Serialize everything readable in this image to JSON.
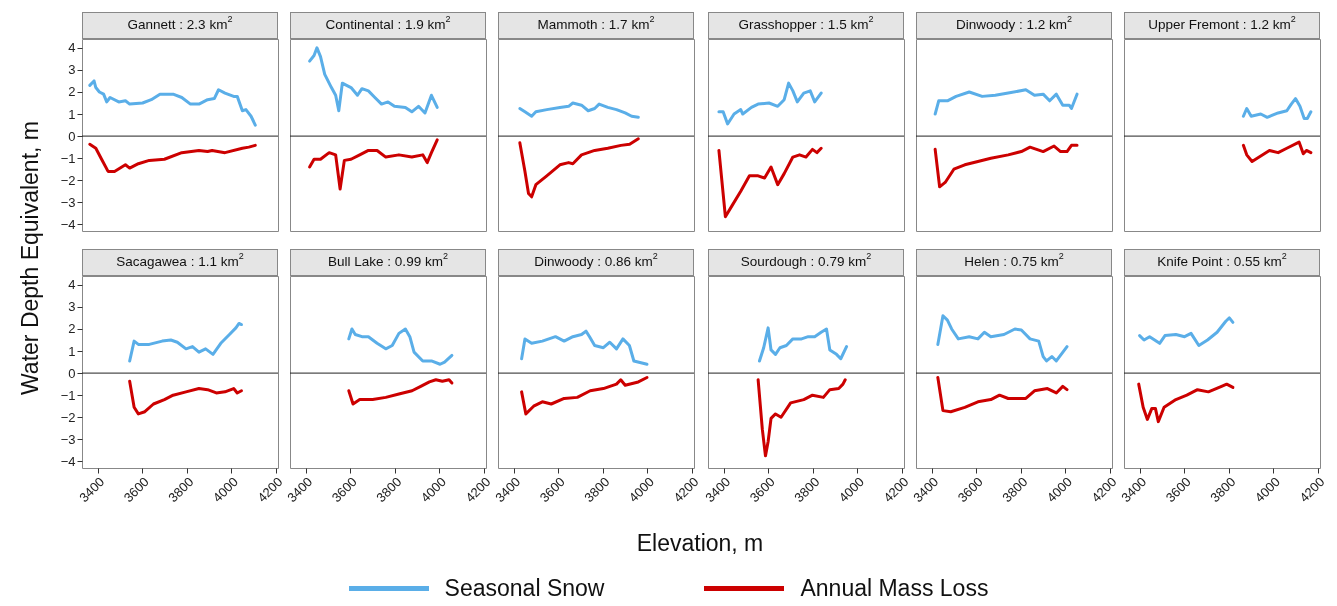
{
  "chart_data": [
    {
      "type": "line",
      "title": "Gannett : 2.3 km$^{2}$",
      "ylabel": "Water Depth Equivalent, m",
      "legend": "bottom",
      "tick_labels": "y",
      "xlim": [
        3330,
        4210
      ],
      "xticks": [
        3400,
        3600,
        3800,
        4000,
        4200
      ],
      "ylim": [
        -4.3,
        4.4
      ],
      "yticks": [
        -4,
        -3,
        -2,
        -1,
        0,
        1,
        2,
        3,
        4
      ],
      "ref_lines": [
        {
          "axis": "y",
          "value": 0
        }
      ],
      "series": [
        {
          "name": "Seasonal Snow",
          "color": "#5aaee8",
          "x": [
            3365,
            3384,
            3392,
            3408,
            3427,
            3441,
            3456,
            3495,
            3525,
            3544,
            3602,
            3641,
            3680,
            3739,
            3778,
            3817,
            3855,
            3894,
            3924,
            3943,
            3972,
            4011,
            4027,
            4050,
            4066,
            4089,
            4108
          ],
          "values": [
            2.3,
            2.5,
            2.2,
            2.0,
            1.9,
            1.55,
            1.75,
            1.55,
            1.6,
            1.45,
            1.5,
            1.65,
            1.9,
            1.9,
            1.75,
            1.45,
            1.45,
            1.65,
            1.7,
            2.1,
            1.95,
            1.8,
            1.8,
            1.15,
            1.2,
            0.9,
            0.5
          ]
        },
        {
          "name": "Annual Mass Loss",
          "color": "#cc0000",
          "x": [
            3365,
            3392,
            3418,
            3447,
            3476,
            3525,
            3544,
            3583,
            3632,
            3700,
            3778,
            3855,
            3894,
            3914,
            3972,
            4050,
            4079,
            4108
          ],
          "values": [
            -0.37,
            -0.55,
            -1.05,
            -1.6,
            -1.6,
            -1.3,
            -1.45,
            -1.25,
            -1.1,
            -1.05,
            -0.75,
            -0.65,
            -0.7,
            -0.65,
            -0.75,
            -0.55,
            -0.5,
            -0.42
          ]
        }
      ]
    },
    {
      "type": "line",
      "title": "Continental : 1.9 km$^{2}$",
      "tick_labels": false,
      "xlim": [
        3330,
        4210
      ],
      "xticks": [
        3400,
        3600,
        3800,
        4000,
        4200
      ],
      "ylim": [
        -4.3,
        4.4
      ],
      "yticks": [
        -4,
        -3,
        -2,
        -1,
        0,
        1,
        2,
        3,
        4
      ],
      "ref_lines": [
        {
          "axis": "y",
          "value": 0
        }
      ],
      "series": [
        {
          "color": "#5aaee8",
          "x": [
            3418,
            3438,
            3451,
            3467,
            3486,
            3516,
            3535,
            3549,
            3565,
            3584,
            3604,
            3633,
            3653,
            3682,
            3711,
            3741,
            3770,
            3799,
            3848,
            3877,
            3907,
            3936,
            3965,
            3991
          ],
          "values": [
            3.4,
            3.65,
            4.0,
            3.6,
            2.8,
            2.2,
            1.85,
            1.15,
            2.4,
            2.3,
            2.2,
            1.85,
            2.15,
            2.05,
            1.75,
            1.45,
            1.55,
            1.35,
            1.3,
            1.1,
            1.35,
            1.05,
            1.85,
            1.3
          ]
        },
        {
          "color": "#cc0000",
          "x": [
            3418,
            3438,
            3467,
            3506,
            3535,
            3555,
            3574,
            3604,
            3643,
            3682,
            3721,
            3760,
            3819,
            3877,
            3926,
            3946,
            3965,
            3991
          ],
          "values": [
            -1.4,
            -1.05,
            -1.05,
            -0.75,
            -0.85,
            -2.4,
            -1.1,
            -1.05,
            -0.85,
            -0.65,
            -0.65,
            -0.95,
            -0.85,
            -0.95,
            -0.85,
            -1.2,
            -0.75,
            -0.17
          ]
        }
      ]
    },
    {
      "type": "line",
      "title": "Mammoth : 1.7 km$^{2}$",
      "tick_labels": false,
      "xlim": [
        3330,
        4210
      ],
      "xticks": [
        3400,
        3600,
        3800,
        4000,
        4200
      ],
      "ylim": [
        -4.3,
        4.4
      ],
      "yticks": [
        -4,
        -3,
        -2,
        -1,
        0,
        1,
        2,
        3,
        4
      ],
      "ref_lines": [
        {
          "axis": "y",
          "value": 0
        }
      ],
      "series": [
        {
          "color": "#5aaee8",
          "x": [
            3428,
            3451,
            3481,
            3500,
            3549,
            3608,
            3647,
            3666,
            3705,
            3735,
            3764,
            3784,
            3823,
            3862,
            3901,
            3930,
            3960
          ],
          "values": [
            1.25,
            1.1,
            0.9,
            1.1,
            1.2,
            1.3,
            1.35,
            1.5,
            1.4,
            1.15,
            1.25,
            1.45,
            1.3,
            1.2,
            1.05,
            0.9,
            0.85
          ]
        },
        {
          "color": "#cc0000",
          "x": [
            3428,
            3451,
            3467,
            3481,
            3500,
            3549,
            3608,
            3647,
            3666,
            3705,
            3764,
            3823,
            3882,
            3921,
            3960
          ],
          "values": [
            -0.3,
            -1.6,
            -2.6,
            -2.75,
            -2.2,
            -1.8,
            -1.3,
            -1.2,
            -1.25,
            -0.85,
            -0.65,
            -0.55,
            -0.42,
            -0.37,
            -0.12
          ]
        }
      ]
    },
    {
      "type": "line",
      "title": "Grasshopper : 1.5 km$^{2}$",
      "tick_labels": false,
      "xlim": [
        3330,
        4210
      ],
      "xticks": [
        3400,
        3600,
        3800,
        4000,
        4200
      ],
      "ylim": [
        -4.3,
        4.4
      ],
      "yticks": [
        -4,
        -3,
        -2,
        -1,
        0,
        1,
        2,
        3,
        4
      ],
      "ref_lines": [
        {
          "axis": "y",
          "value": 0
        }
      ],
      "series": [
        {
          "color": "#5aaee8",
          "x": [
            3379,
            3398,
            3418,
            3447,
            3477,
            3486,
            3525,
            3555,
            3604,
            3643,
            3672,
            3692,
            3711,
            3731,
            3760,
            3789,
            3809,
            3838
          ],
          "values": [
            1.1,
            1.1,
            0.55,
            1.0,
            1.2,
            1.0,
            1.3,
            1.45,
            1.5,
            1.35,
            1.65,
            2.4,
            2.05,
            1.55,
            1.95,
            2.05,
            1.55,
            1.95
          ]
        },
        {
          "color": "#cc0000",
          "x": [
            3379,
            3408,
            3438,
            3477,
            3516,
            3555,
            3584,
            3613,
            3643,
            3672,
            3711,
            3741,
            3770,
            3799,
            3819,
            3838
          ],
          "values": [
            -0.65,
            -3.65,
            -3.15,
            -2.5,
            -1.8,
            -1.8,
            -1.9,
            -1.4,
            -2.2,
            -1.7,
            -0.95,
            -0.85,
            -0.95,
            -0.6,
            -0.75,
            -0.55
          ]
        }
      ]
    },
    {
      "type": "line",
      "title": "Dinwoody : 1.2 km$^{2}$",
      "tick_labels": false,
      "xlim": [
        3330,
        4210
      ],
      "xticks": [
        3400,
        3600,
        3800,
        4000,
        4200
      ],
      "ylim": [
        -4.3,
        4.4
      ],
      "yticks": [
        -4,
        -3,
        -2,
        -1,
        0,
        1,
        2,
        3,
        4
      ],
      "ref_lines": [
        {
          "axis": "y",
          "value": 0
        }
      ],
      "series": [
        {
          "color": "#5aaee8",
          "x": [
            3416,
            3432,
            3471,
            3510,
            3569,
            3627,
            3686,
            3744,
            3823,
            3862,
            3901,
            3930,
            3960,
            3989,
            4018,
            4028,
            4053
          ],
          "values": [
            1.0,
            1.6,
            1.6,
            1.8,
            2.0,
            1.8,
            1.85,
            1.95,
            2.1,
            1.85,
            1.9,
            1.6,
            1.9,
            1.4,
            1.4,
            1.25,
            1.9
          ]
        },
        {
          "color": "#cc0000",
          "x": [
            3416,
            3436,
            3461,
            3500,
            3549,
            3608,
            3666,
            3744,
            3803,
            3842,
            3901,
            3950,
            3979,
            4008,
            4028,
            4053
          ],
          "values": [
            -0.6,
            -2.3,
            -2.1,
            -1.5,
            -1.3,
            -1.15,
            -1.0,
            -0.85,
            -0.7,
            -0.5,
            -0.7,
            -0.45,
            -0.7,
            -0.7,
            -0.42,
            -0.42
          ]
        }
      ]
    },
    {
      "type": "line",
      "title": "Upper Fremont : 1.2 km$^{2}$",
      "tick_labels": false,
      "xlim": [
        3330,
        4210
      ],
      "xticks": [
        3400,
        3600,
        3800,
        4000,
        4200
      ],
      "ylim": [
        -4.3,
        4.4
      ],
      "yticks": [
        -4,
        -3,
        -2,
        -1,
        0,
        1,
        2,
        3,
        4
      ],
      "ref_lines": [
        {
          "axis": "y",
          "value": 0
        }
      ],
      "series": [
        {
          "color": "#5aaee8",
          "x": [
            3866,
            3881,
            3901,
            3944,
            3973,
            4022,
            4061,
            4081,
            4100,
            4120,
            4139,
            4153,
            4169
          ],
          "values": [
            0.9,
            1.25,
            0.9,
            1.0,
            0.85,
            1.05,
            1.15,
            1.45,
            1.7,
            1.35,
            0.8,
            0.8,
            1.1
          ]
        },
        {
          "color": "#cc0000",
          "x": [
            3866,
            3881,
            3905,
            3944,
            3983,
            4022,
            4061,
            4116,
            4135,
            4149,
            4169
          ],
          "values": [
            -0.42,
            -0.85,
            -1.15,
            -0.9,
            -0.65,
            -0.75,
            -0.55,
            -0.27,
            -0.8,
            -0.65,
            -0.75
          ]
        }
      ]
    },
    {
      "type": "line",
      "title": "Sacagawea : 1.1 km$^{2}$",
      "xlim": [
        3330,
        4210
      ],
      "xticks": [
        3400,
        3600,
        3800,
        4000,
        4200
      ],
      "ylim": [
        -4.3,
        4.4
      ],
      "yticks": [
        -4,
        -3,
        -2,
        -1,
        0,
        1,
        2,
        3,
        4
      ],
      "ref_lines": [
        {
          "axis": "y",
          "value": 0
        }
      ],
      "series": [
        {
          "color": "#5aaee8",
          "x": [
            3544,
            3564,
            3583,
            3632,
            3690,
            3729,
            3758,
            3797,
            3826,
            3855,
            3885,
            3918,
            3953,
            3992,
            4021,
            4035,
            4046
          ],
          "values": [
            0.55,
            1.45,
            1.3,
            1.3,
            1.45,
            1.5,
            1.4,
            1.1,
            1.2,
            0.95,
            1.1,
            0.85,
            1.35,
            1.75,
            2.05,
            2.25,
            2.2
          ]
        },
        {
          "color": "#cc0000",
          "x": [
            3544,
            3564,
            3583,
            3612,
            3651,
            3700,
            3739,
            3797,
            3855,
            3894,
            3933,
            3972,
            4011,
            4027,
            4046
          ],
          "values": [
            -0.37,
            -1.55,
            -1.85,
            -1.75,
            -1.4,
            -1.2,
            -1.0,
            -0.85,
            -0.7,
            -0.75,
            -0.9,
            -0.85,
            -0.7,
            -0.9,
            -0.8
          ]
        }
      ]
    },
    {
      "type": "line",
      "title": "Bull Lake : 0.99 km$^{2}$",
      "tick_labels": "x",
      "xlim": [
        3330,
        4210
      ],
      "xticks": [
        3400,
        3600,
        3800,
        4000,
        4200
      ],
      "ylim": [
        -4.3,
        4.4
      ],
      "yticks": [
        -4,
        -3,
        -2,
        -1,
        0,
        1,
        2,
        3,
        4
      ],
      "ref_lines": [
        {
          "axis": "y",
          "value": 0
        }
      ],
      "series": [
        {
          "color": "#5aaee8",
          "x": [
            3594,
            3608,
            3623,
            3653,
            3682,
            3721,
            3760,
            3789,
            3819,
            3848,
            3868,
            3887,
            3926,
            3965,
            4004,
            4024,
            4057
          ],
          "values": [
            1.55,
            2.0,
            1.75,
            1.65,
            1.65,
            1.35,
            1.1,
            1.25,
            1.8,
            2.0,
            1.65,
            0.95,
            0.55,
            0.55,
            0.4,
            0.5,
            0.8
          ]
        },
        {
          "color": "#cc0000",
          "x": [
            3594,
            3613,
            3643,
            3701,
            3760,
            3819,
            3878,
            3917,
            3956,
            3985,
            4014,
            4044,
            4057
          ],
          "values": [
            -0.8,
            -1.4,
            -1.2,
            -1.2,
            -1.1,
            -0.95,
            -0.8,
            -0.6,
            -0.4,
            -0.3,
            -0.37,
            -0.3,
            -0.45
          ]
        }
      ]
    },
    {
      "type": "line",
      "title": "Dinwoody : 0.86 km$^{2}$",
      "xlabel": "Elevation, m",
      "tick_labels": "x",
      "xlim": [
        3330,
        4210
      ],
      "xticks": [
        3400,
        3600,
        3800,
        4000,
        4200
      ],
      "ylim": [
        -4.3,
        4.4
      ],
      "yticks": [
        -4,
        -3,
        -2,
        -1,
        0,
        1,
        2,
        3,
        4
      ],
      "ref_lines": [
        {
          "axis": "y",
          "value": 0
        }
      ],
      "series": [
        {
          "color": "#5aaee8",
          "x": [
            3436,
            3451,
            3481,
            3529,
            3588,
            3627,
            3666,
            3705,
            3725,
            3741,
            3764,
            3803,
            3832,
            3862,
            3891,
            3920,
            3940,
            3999
          ],
          "values": [
            0.65,
            1.55,
            1.35,
            1.45,
            1.65,
            1.45,
            1.65,
            1.75,
            1.9,
            1.65,
            1.25,
            1.15,
            1.4,
            1.1,
            1.55,
            1.25,
            0.55,
            0.4
          ]
        },
        {
          "color": "#cc0000",
          "x": [
            3436,
            3455,
            3490,
            3529,
            3569,
            3627,
            3686,
            3744,
            3803,
            3862,
            3881,
            3901,
            3960,
            3999
          ],
          "values": [
            -0.85,
            -1.85,
            -1.5,
            -1.3,
            -1.4,
            -1.15,
            -1.1,
            -0.8,
            -0.7,
            -0.5,
            -0.3,
            -0.55,
            -0.4,
            -0.2
          ]
        }
      ]
    },
    {
      "type": "line",
      "title": "Sourdough : 0.79 km$^{2}$",
      "tick_labels": "x",
      "xlim": [
        3330,
        4210
      ],
      "xticks": [
        3400,
        3600,
        3800,
        4000,
        4200
      ],
      "ylim": [
        -4.3,
        4.4
      ],
      "yticks": [
        -4,
        -3,
        -2,
        -1,
        0,
        1,
        2,
        3,
        4
      ],
      "ref_lines": [
        {
          "axis": "y",
          "value": 0
        }
      ],
      "series": [
        {
          "color": "#5aaee8",
          "x": [
            3561,
            3580,
            3600,
            3613,
            3633,
            3653,
            3682,
            3711,
            3750,
            3780,
            3809,
            3838,
            3862,
            3877,
            3907,
            3926,
            3952
          ],
          "values": [
            0.55,
            1.15,
            2.05,
            1.05,
            0.85,
            1.15,
            1.25,
            1.55,
            1.55,
            1.65,
            1.65,
            1.85,
            2.0,
            1.05,
            0.85,
            0.65,
            1.2
          ]
        },
        {
          "color": "#cc0000",
          "x": [
            3555,
            3574,
            3588,
            3600,
            3613,
            3633,
            3658,
            3701,
            3760,
            3799,
            3848,
            3877,
            3917,
            3936,
            3946
          ],
          "values": [
            -0.3,
            -2.55,
            -3.75,
            -3.1,
            -2.05,
            -1.85,
            -2.0,
            -1.35,
            -1.2,
            -1.0,
            -1.1,
            -0.75,
            -0.7,
            -0.5,
            -0.3
          ]
        }
      ]
    },
    {
      "type": "line",
      "title": "Helen : 0.75 km$^{2}$",
      "tick_labels": "x",
      "xlim": [
        3330,
        4210
      ],
      "xticks": [
        3400,
        3600,
        3800,
        4000,
        4200
      ],
      "ylim": [
        -4.3,
        4.4
      ],
      "yticks": [
        -4,
        -3,
        -2,
        -1,
        0,
        1,
        2,
        3,
        4
      ],
      "ref_lines": [
        {
          "axis": "y",
          "value": 0
        }
      ],
      "series": [
        {
          "color": "#5aaee8",
          "x": [
            3428,
            3451,
            3471,
            3490,
            3520,
            3569,
            3608,
            3637,
            3666,
            3725,
            3774,
            3803,
            3842,
            3881,
            3901,
            3916,
            3940,
            3960,
            4008
          ],
          "values": [
            1.3,
            2.6,
            2.4,
            2.0,
            1.55,
            1.65,
            1.55,
            1.85,
            1.65,
            1.75,
            2.0,
            1.95,
            1.55,
            1.45,
            0.75,
            0.55,
            0.75,
            0.55,
            1.2
          ]
        },
        {
          "color": "#cc0000",
          "x": [
            3428,
            3451,
            3486,
            3549,
            3608,
            3666,
            3705,
            3744,
            3823,
            3862,
            3920,
            3960,
            3989,
            4008
          ],
          "values": [
            -0.2,
            -1.7,
            -1.75,
            -1.55,
            -1.3,
            -1.2,
            -1.0,
            -1.15,
            -1.15,
            -0.8,
            -0.7,
            -0.9,
            -0.6,
            -0.75
          ]
        }
      ]
    },
    {
      "type": "line",
      "title": "Knife Point : 0.55 km$^{2}$",
      "tick_labels": "x",
      "xlim": [
        3330,
        4210
      ],
      "xticks": [
        3400,
        3600,
        3800,
        4000,
        4200
      ],
      "ylim": [
        -4.3,
        4.4
      ],
      "yticks": [
        -4,
        -3,
        -2,
        -1,
        0,
        1,
        2,
        3,
        4
      ],
      "ref_lines": [
        {
          "axis": "y",
          "value": 0
        }
      ],
      "series": [
        {
          "color": "#5aaee8",
          "x": [
            3400,
            3420,
            3445,
            3490,
            3514,
            3563,
            3602,
            3631,
            3666,
            3705,
            3748,
            3787,
            3803,
            3819
          ],
          "values": [
            1.7,
            1.5,
            1.65,
            1.35,
            1.7,
            1.75,
            1.65,
            1.8,
            1.25,
            1.5,
            1.85,
            2.35,
            2.5,
            2.3
          ]
        },
        {
          "color": "#cc0000",
          "x": [
            3396,
            3416,
            3435,
            3455,
            3471,
            3484,
            3510,
            3563,
            3612,
            3660,
            3709,
            3768,
            3791,
            3819
          ],
          "values": [
            -0.5,
            -1.55,
            -2.1,
            -1.6,
            -1.6,
            -2.2,
            -1.55,
            -1.2,
            -1.0,
            -0.75,
            -0.85,
            -0.6,
            -0.5,
            -0.65
          ]
        }
      ]
    }
  ]
}
